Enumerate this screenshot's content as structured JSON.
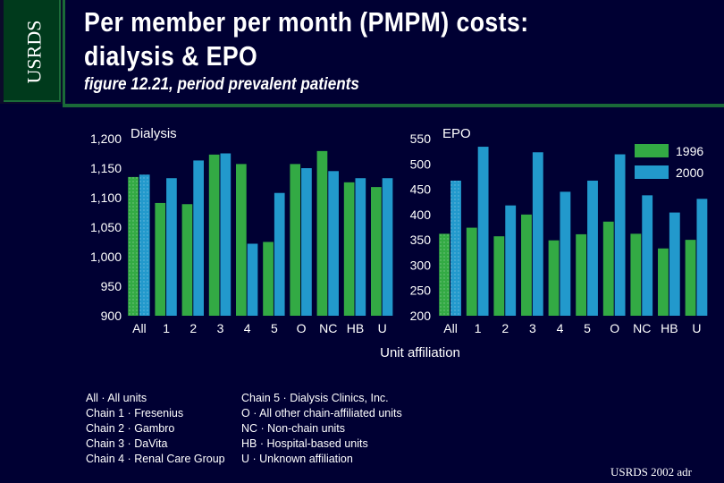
{
  "header": {
    "logo_text": "USRDS",
    "title_line1": "Per member per month (PMPM) costs:",
    "title_line2": "dialysis & EPO",
    "subtitle": "figure 12.21, period prevalent patients"
  },
  "colors": {
    "background": "#000033",
    "series_1996": "#33aa44",
    "series_2000": "#2299cc",
    "accent_green": "#1a6a38"
  },
  "chart_data": [
    {
      "type": "bar",
      "title": "Dialysis",
      "categories": [
        "All",
        "1",
        "2",
        "3",
        "4",
        "5",
        "O",
        "NC",
        "HB",
        "U"
      ],
      "ylim": [
        900,
        1200
      ],
      "yticks": [
        "900",
        "950",
        "1,000",
        "1,050",
        "1,100",
        "1,150",
        "1,200"
      ],
      "ytick_values": [
        900,
        950,
        1000,
        1050,
        1100,
        1150,
        1200
      ],
      "series": [
        {
          "name": "1996",
          "values": [
            1135,
            1091,
            1089,
            1173,
            1157,
            1025,
            1157,
            1179,
            1126,
            1118
          ]
        },
        {
          "name": "2000",
          "values": [
            1139,
            1133,
            1163,
            1175,
            1022,
            1108,
            1150,
            1145,
            1133,
            1133
          ]
        }
      ]
    },
    {
      "type": "bar",
      "title": "EPO",
      "categories": [
        "All",
        "1",
        "2",
        "3",
        "4",
        "5",
        "O",
        "NC",
        "HB",
        "U"
      ],
      "ylim": [
        200,
        550
      ],
      "yticks": [
        "200",
        "250",
        "300",
        "350",
        "400",
        "450",
        "500",
        "550"
      ],
      "ytick_values": [
        200,
        250,
        300,
        350,
        400,
        450,
        500,
        550
      ],
      "series": [
        {
          "name": "1996",
          "values": [
            362,
            374,
            357,
            400,
            349,
            361,
            386,
            362,
            333,
            350
          ]
        },
        {
          "name": "2000",
          "values": [
            467,
            534,
            418,
            523,
            445,
            467,
            519,
            438,
            404,
            431
          ]
        }
      ],
      "legend": [
        "1996",
        "2000"
      ]
    }
  ],
  "xlabel": "Unit affiliation",
  "abbreviations": {
    "left": [
      "All · All units",
      "Chain 1   ·   Fresenius",
      "Chain 2   ·   Gambro",
      "Chain 3   ·   DaVita",
      "Chain 4 · Renal Care Group"
    ],
    "right": [
      "Chain 5   ·   Dialysis Clinics, Inc.",
      "O · All other chain-affiliated units",
      "NC · Non-chain units",
      "HB · Hospital-based units",
      "U · Unknown affiliation"
    ]
  },
  "footer": "USRDS 2002 adr"
}
